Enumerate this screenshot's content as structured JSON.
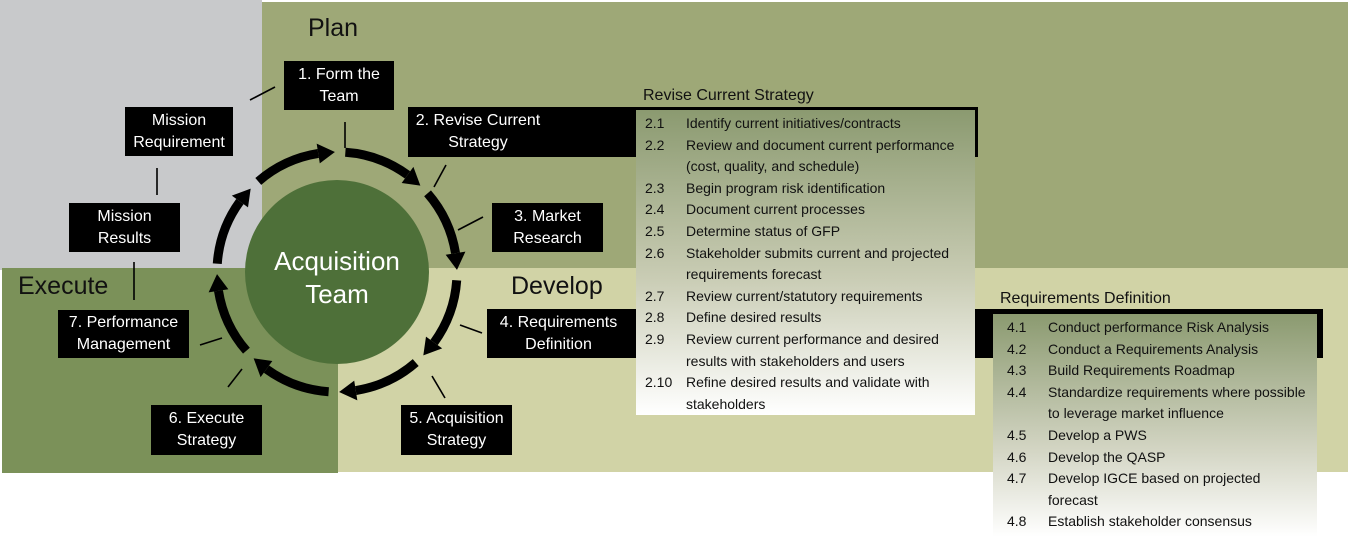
{
  "colors": {
    "plan": "#9ea877",
    "mission": "#c8c9cb",
    "execute": "#7b9159",
    "develop": "#d1d3a6",
    "center": "#4e7039"
  },
  "phases": {
    "plan": "Plan",
    "execute": "Execute",
    "develop": "Develop"
  },
  "center": {
    "line1": "Acquisition",
    "line2": "Team"
  },
  "steps": [
    {
      "l1": "1. Form the",
      "l2": "Team"
    },
    {
      "l1": "2. Revise Current",
      "l2": "Strategy"
    },
    {
      "l1": "3. Market",
      "l2": "Research"
    },
    {
      "l1": "4. Requirements",
      "l2": "Definition"
    },
    {
      "l1": "5. Acquisition",
      "l2": "Strategy"
    },
    {
      "l1": "6. Execute",
      "l2": "Strategy"
    },
    {
      "l1": "7. Performance",
      "l2": "Management"
    }
  ],
  "mission": {
    "requirement": {
      "l1": "Mission",
      "l2": "Requirement"
    },
    "results": {
      "l1": "Mission",
      "l2": "Results"
    }
  },
  "revise": {
    "title": "Revise Current Strategy",
    "items": [
      {
        "n": "2.1",
        "t": "Identify current initiatives/contracts"
      },
      {
        "n": "2.2",
        "t": "Review and document current performance (cost, quality, and schedule)"
      },
      {
        "n": "2.3",
        "t": "Begin program risk identification"
      },
      {
        "n": "2.4",
        "t": "Document current processes"
      },
      {
        "n": "2.5",
        "t": "Determine status of GFP"
      },
      {
        "n": "2.6",
        "t": "Stakeholder submits current and projected requirements forecast"
      },
      {
        "n": "2.7",
        "t": "Review current/statutory requirements"
      },
      {
        "n": "2.8",
        "t": "Define desired results"
      },
      {
        "n": "2.9",
        "t": "Review current performance and desired results with stakeholders and users"
      },
      {
        "n": "2.10",
        "t": "Refine desired results and validate with stakeholders"
      }
    ]
  },
  "reqdef": {
    "title": "Requirements Definition",
    "items": [
      {
        "n": "4.1",
        "t": "Conduct performance Risk Analysis"
      },
      {
        "n": "4.2",
        "t": "Conduct a Requirements Analysis"
      },
      {
        "n": "4.3",
        "t": "Build Requirements Roadmap"
      },
      {
        "n": "4.4",
        "t": "Standardize requirements where possible to leverage market influence"
      },
      {
        "n": "4.5",
        "t": "Develop a PWS"
      },
      {
        "n": "4.6",
        "t": "Develop the QASP"
      },
      {
        "n": "4.7",
        "t": "Develop IGCE based on projected forecast"
      },
      {
        "n": "4.8",
        "t": "Establish stakeholder consensus"
      }
    ]
  }
}
